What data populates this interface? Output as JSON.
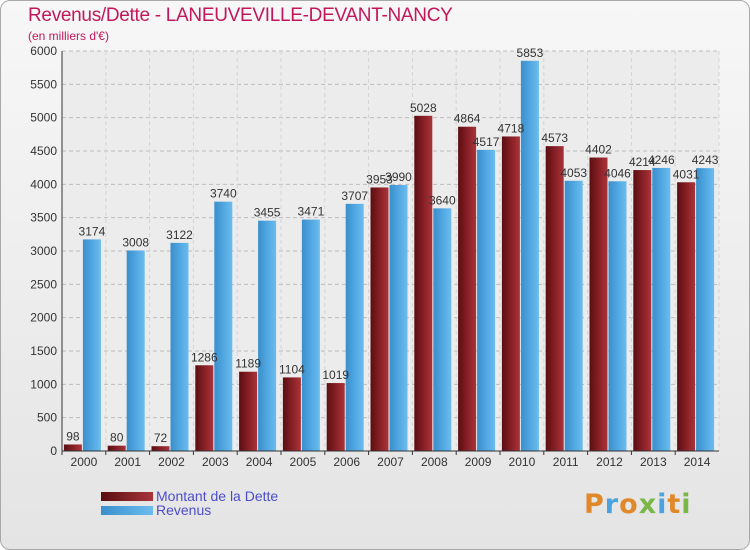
{
  "header": {
    "title": "Revenus/Dette - LANEUVEVILLE-DEVANT-NANCY",
    "subtitle": "(en milliers d'€)"
  },
  "colors": {
    "dette": "#7b1a1f",
    "dette_light": "#a8343a",
    "revenus": "#4aa3df",
    "revenus_light": "#6cbcee",
    "title": "#c2185b",
    "legend_text": "#4d4dcc"
  },
  "chart_data": {
    "type": "bar",
    "title": "Revenus/Dette - LANEUVEVILLE-DEVANT-NANCY",
    "ylabel": "(en milliers d'€)",
    "xlabel": "",
    "ylim": [
      0,
      6000
    ],
    "yticks": [
      0,
      500,
      1000,
      1500,
      2000,
      2500,
      3000,
      3500,
      4000,
      4500,
      5000,
      5500,
      6000
    ],
    "grid": true,
    "categories": [
      "2000",
      "2001",
      "2002",
      "2003",
      "2004",
      "2005",
      "2006",
      "2007",
      "2008",
      "2009",
      "2010",
      "2011",
      "2012",
      "2013",
      "2014"
    ],
    "series": [
      {
        "name": "Montant de la Dette",
        "values": [
          98,
          80,
          72,
          1286,
          1189,
          1104,
          1019,
          3953,
          5028,
          4864,
          4718,
          4573,
          4402,
          4214,
          4031
        ],
        "labels": [
          "98",
          "80",
          "72",
          "1286",
          "1189",
          "1104",
          "1019",
          "3953",
          "5028",
          "4864",
          "4718",
          "4573",
          "4402",
          "4214",
          "4031"
        ]
      },
      {
        "name": "Revenus",
        "values": [
          3174,
          3008,
          3122,
          3740,
          3455,
          3471,
          3707,
          3990,
          3640,
          4517,
          5853,
          4053,
          4046,
          4246,
          4243
        ],
        "labels": [
          "3174",
          "3008",
          "3122",
          "3740",
          "3455",
          "3471",
          "3707",
          "3990",
          "3640",
          "4517",
          "5853",
          "4053",
          "4046",
          "4246",
          "4243"
        ]
      }
    ],
    "legend": "bottom-left"
  },
  "legend": {
    "items": [
      {
        "label": "Montant de la Dette"
      },
      {
        "label": "Revenus"
      }
    ]
  },
  "brand": {
    "name": "Proxiti"
  }
}
